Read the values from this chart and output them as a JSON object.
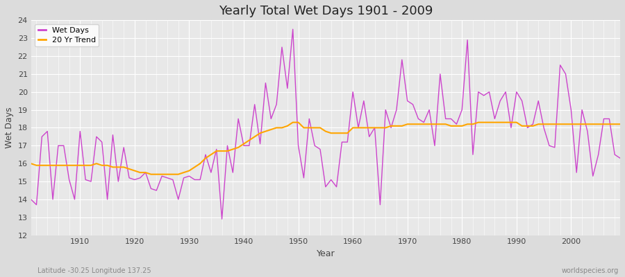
{
  "title": "Yearly Total Wet Days 1901 - 2009",
  "xlabel": "Year",
  "ylabel": "Wet Days",
  "lat_lon_label": "Latitude -30.25 Longitude 137.25",
  "watermark": "worldspecies.org",
  "ylim": [
    12,
    24
  ],
  "line_color": "#CC44CC",
  "trend_color": "#FFA500",
  "background_color": "#DCDCDC",
  "plot_bg_color": "#E8E8E8",
  "wet_days": [
    14.0,
    13.7,
    17.5,
    17.8,
    14.0,
    17.0,
    17.0,
    15.1,
    14.0,
    17.8,
    15.1,
    15.0,
    17.5,
    17.2,
    14.0,
    17.6,
    15.0,
    16.9,
    15.2,
    15.1,
    15.2,
    15.5,
    14.6,
    14.5,
    15.3,
    15.2,
    15.1,
    14.0,
    15.2,
    15.3,
    15.1,
    15.1,
    16.5,
    15.5,
    16.8,
    12.9,
    17.0,
    15.5,
    18.5,
    17.0,
    17.0,
    19.3,
    17.1,
    20.5,
    18.5,
    19.3,
    22.5,
    20.2,
    23.5,
    17.0,
    15.2,
    18.5,
    17.0,
    16.8,
    14.7,
    15.1,
    14.7,
    17.2,
    17.2,
    20.0,
    18.0,
    19.5,
    17.5,
    18.0,
    13.7,
    19.0,
    18.0,
    19.0,
    21.8,
    19.5,
    19.3,
    18.5,
    18.3,
    19.0,
    17.0,
    21.0,
    18.5,
    18.5,
    18.2,
    19.0,
    22.9,
    16.5,
    20.0,
    19.8,
    20.0,
    18.5,
    19.5,
    20.0,
    18.0,
    20.0,
    19.5,
    18.0,
    18.2,
    19.5,
    18.0,
    17.0,
    16.9,
    21.5,
    21.0,
    19.0,
    15.5,
    19.0,
    17.8,
    15.3,
    16.5,
    18.5,
    18.5,
    16.5,
    16.3
  ],
  "trend": [
    16.0,
    15.9,
    15.9,
    15.9,
    15.9,
    15.9,
    15.9,
    15.9,
    15.9,
    15.9,
    15.9,
    15.9,
    16.0,
    15.9,
    15.9,
    15.8,
    15.8,
    15.8,
    15.7,
    15.6,
    15.5,
    15.5,
    15.4,
    15.4,
    15.4,
    15.4,
    15.4,
    15.4,
    15.5,
    15.6,
    15.8,
    16.0,
    16.3,
    16.5,
    16.7,
    16.7,
    16.7,
    16.8,
    16.9,
    17.1,
    17.3,
    17.5,
    17.7,
    17.8,
    17.9,
    18.0,
    18.0,
    18.1,
    18.3,
    18.3,
    18.0,
    18.0,
    18.0,
    18.0,
    17.8,
    17.7,
    17.7,
    17.7,
    17.7,
    18.0,
    18.0,
    18.0,
    18.0,
    18.0,
    18.0,
    18.0,
    18.1,
    18.1,
    18.1,
    18.2,
    18.2,
    18.2,
    18.2,
    18.2,
    18.2,
    18.2,
    18.2,
    18.1,
    18.1,
    18.1,
    18.2,
    18.2,
    18.3,
    18.3,
    18.3,
    18.3,
    18.3,
    18.3,
    18.3,
    18.3,
    18.1,
    18.1,
    18.1,
    18.2,
    18.2,
    18.2,
    18.2,
    18.2,
    18.2,
    18.2,
    18.2,
    18.2,
    18.2,
    18.2,
    18.2,
    18.2,
    18.2,
    18.2,
    18.2
  ]
}
